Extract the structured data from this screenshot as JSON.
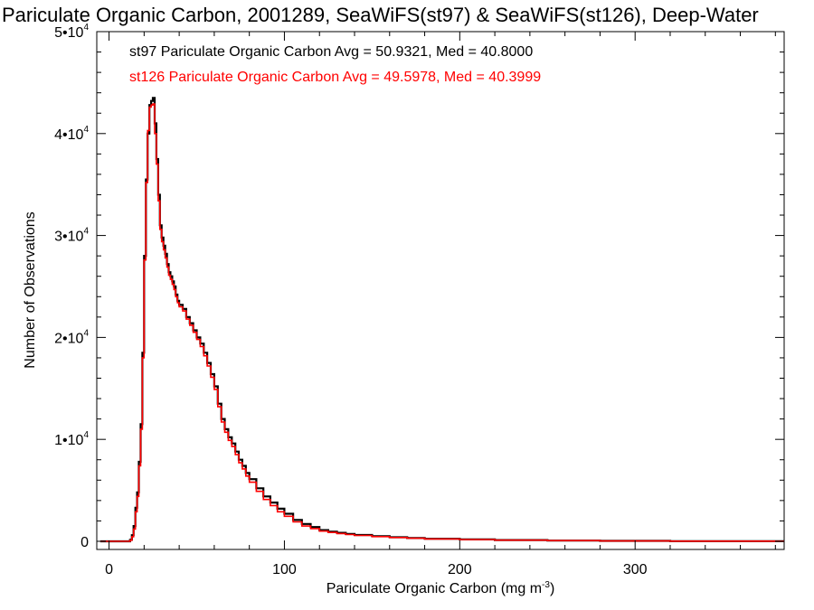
{
  "chart_data": {
    "type": "line",
    "title": "Pariculate Organic Carbon, 2001289, SeaWiFS(st97) & SeaWiFS(st126), Deep-Water",
    "xlabel": "Pariculate Organic Carbon (mg m",
    "xlabel_sup": "-3",
    "xlabel_end": ")",
    "ylabel": "Number of Observations",
    "xlim": [
      -7,
      385
    ],
    "ylim": [
      -800,
      50000
    ],
    "x_ticks": [
      0,
      100,
      200,
      300
    ],
    "x_tick_labels": [
      "0",
      "100",
      "200",
      "300"
    ],
    "y_ticks": [
      0,
      10000,
      20000,
      30000,
      40000,
      50000
    ],
    "y_tick_labels": [
      {
        "base": "0",
        "exp": ""
      },
      {
        "base": "1•10",
        "exp": "4"
      },
      {
        "base": "2•10",
        "exp": "4"
      },
      {
        "base": "3•10",
        "exp": "4"
      },
      {
        "base": "4•10",
        "exp": "4"
      },
      {
        "base": "5•10",
        "exp": "4"
      }
    ],
    "annotations": [
      {
        "text": "st97 Pariculate Organic Carbon Avg = 50.9321, Med = 40.8000",
        "color": "#000000"
      },
      {
        "text": "st126 Pariculate Organic Carbon Avg = 49.5978, Med = 40.3999",
        "color": "#ff0000"
      }
    ],
    "series": [
      {
        "color": "#000000",
        "x": [
          -5,
          12,
          13,
          14,
          15,
          16,
          17,
          18,
          19,
          20,
          21,
          22,
          23,
          24,
          25,
          26,
          27,
          28,
          29,
          30,
          31,
          32,
          33,
          34,
          35,
          36,
          37,
          38,
          39,
          40,
          42,
          44,
          46,
          48,
          50,
          52,
          54,
          56,
          58,
          60,
          62,
          64,
          66,
          68,
          70,
          72,
          74,
          76,
          78,
          80,
          84,
          88,
          92,
          96,
          100,
          105,
          110,
          115,
          120,
          125,
          130,
          135,
          140,
          150,
          160,
          170,
          180,
          200,
          220,
          250,
          280,
          320,
          385
        ],
        "y": [
          0,
          150,
          600,
          1500,
          3300,
          4800,
          7800,
          11500,
          18500,
          28000,
          35500,
          40000,
          42800,
          43200,
          43500,
          41000,
          37500,
          34000,
          31000,
          29800,
          29000,
          28200,
          27200,
          26400,
          26000,
          25500,
          25000,
          24200,
          23600,
          23200,
          22800,
          22000,
          21400,
          20700,
          20000,
          19400,
          18500,
          17500,
          16400,
          15200,
          13500,
          12000,
          11000,
          10200,
          9600,
          8800,
          8000,
          7400,
          6700,
          6100,
          5200,
          4400,
          3800,
          3200,
          2700,
          2100,
          1700,
          1400,
          1100,
          950,
          830,
          720,
          620,
          500,
          400,
          320,
          250,
          180,
          120,
          70,
          40,
          15,
          0
        ]
      },
      {
        "color": "#ff0000",
        "x": [
          -5,
          12,
          13,
          14,
          15,
          16,
          17,
          18,
          19,
          20,
          21,
          22,
          23,
          24,
          25,
          26,
          27,
          28,
          29,
          30,
          31,
          32,
          33,
          34,
          35,
          36,
          37,
          38,
          39,
          40,
          42,
          44,
          46,
          48,
          50,
          52,
          54,
          56,
          58,
          60,
          62,
          64,
          66,
          68,
          70,
          72,
          74,
          76,
          78,
          80,
          84,
          88,
          92,
          96,
          100,
          105,
          110,
          115,
          120,
          125,
          130,
          135,
          140,
          150,
          160,
          170,
          180,
          200,
          220,
          250,
          280,
          320,
          385
        ],
        "y": [
          0,
          100,
          450,
          1200,
          2900,
          4400,
          7400,
          11000,
          18000,
          27600,
          35200,
          40300,
          42600,
          42800,
          42900,
          40000,
          37000,
          33400,
          30600,
          29400,
          28600,
          27800,
          26900,
          26100,
          25700,
          25200,
          24700,
          24000,
          23400,
          23000,
          22600,
          21800,
          21200,
          20500,
          19800,
          19100,
          18200,
          17200,
          16100,
          14900,
          13200,
          11700,
          10700,
          9900,
          9300,
          8500,
          7700,
          7100,
          6400,
          5800,
          4900,
          4100,
          3500,
          2900,
          2450,
          1900,
          1500,
          1250,
          1000,
          870,
          760,
          660,
          570,
          460,
          370,
          300,
          230,
          170,
          110,
          65,
          35,
          12,
          0
        ]
      }
    ]
  }
}
